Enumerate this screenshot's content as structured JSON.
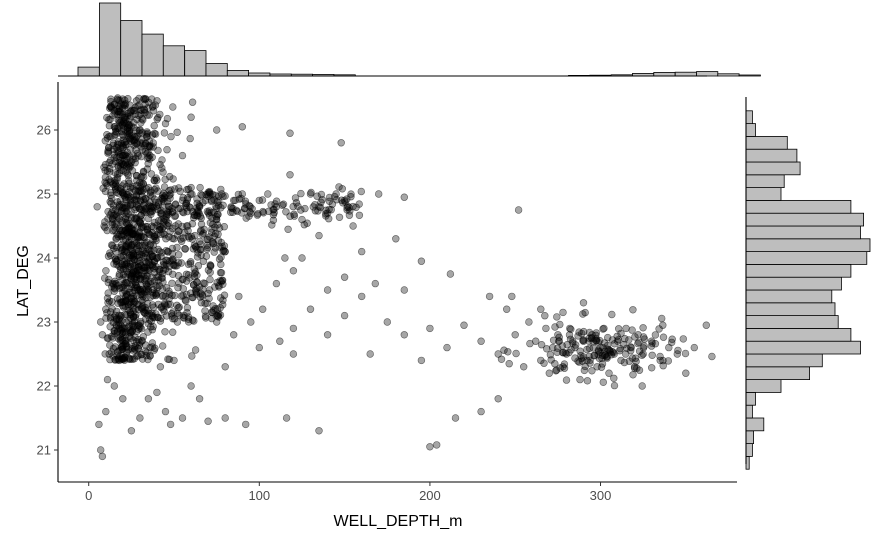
{
  "chart_data": {
    "type": "scatter",
    "title": "",
    "xlabel": "WELL_DEPTH_m",
    "ylabel": "LAT_DEG",
    "xlim": [
      -18,
      380
    ],
    "ylim": [
      20.5,
      26.75
    ],
    "x_ticks": [
      "0",
      "100",
      "200",
      "300"
    ],
    "y_ticks": [
      "21",
      "22",
      "23",
      "24",
      "25",
      "26"
    ],
    "grid": false,
    "legend": "none",
    "point_color": "#000000",
    "point_alpha": 0.35,
    "hist_color": "#bebebe",
    "marginal_x_hist": {
      "bin_width": 12.5,
      "start": -6.25,
      "counts": [
        45,
        368,
        280,
        211,
        152,
        128,
        63,
        28,
        15,
        10,
        9,
        8,
        6,
        0,
        0,
        0,
        0,
        0,
        0,
        0,
        0,
        0,
        0,
        3,
        4,
        6,
        13,
        18,
        19,
        22,
        11,
        5,
        0
      ]
    },
    "marginal_y_hist": {
      "bin_width": 0.2,
      "start": 20.7,
      "counts": [
        5,
        10,
        12,
        28,
        10,
        15,
        55,
        100,
        120,
        180,
        165,
        145,
        140,
        135,
        150,
        165,
        190,
        195,
        180,
        185,
        165,
        55,
        60,
        85,
        80,
        65,
        15,
        10
      ]
    },
    "series": [
      {
        "points": [
          [
            8,
            22.8
          ],
          [
            10,
            23.2
          ],
          [
            12,
            22.5
          ],
          [
            14,
            23.6
          ],
          [
            16,
            24.1
          ],
          [
            18,
            24.8
          ],
          [
            20,
            25.6
          ],
          [
            12,
            25.9
          ],
          [
            15,
            26.3
          ],
          [
            22,
            26.1
          ],
          [
            25,
            25.5
          ],
          [
            28,
            24.9
          ],
          [
            30,
            24.4
          ],
          [
            26,
            23.8
          ],
          [
            24,
            23.3
          ],
          [
            20,
            22.9
          ],
          [
            18,
            22.4
          ],
          [
            11,
            22.1
          ],
          [
            9,
            24.5
          ],
          [
            13,
            25.2
          ],
          [
            17,
            26.5
          ],
          [
            19,
            23.1
          ],
          [
            21,
            23.9
          ],
          [
            23,
            24.6
          ],
          [
            27,
            25.8
          ],
          [
            29,
            23.5
          ],
          [
            31,
            22.7
          ],
          [
            33,
            24.2
          ],
          [
            35,
            25.1
          ],
          [
            37,
            23.7
          ],
          [
            40,
            24.0
          ],
          [
            42,
            24.7
          ],
          [
            45,
            23.4
          ],
          [
            48,
            25.0
          ],
          [
            50,
            24.3
          ],
          [
            52,
            23.0
          ],
          [
            55,
            24.9
          ],
          [
            58,
            24.5
          ],
          [
            60,
            25.1
          ],
          [
            62,
            24.2
          ],
          [
            65,
            24.8
          ],
          [
            68,
            23.6
          ],
          [
            70,
            25.0
          ],
          [
            72,
            24.4
          ],
          [
            75,
            24.6
          ],
          [
            78,
            25.0
          ],
          [
            80,
            24.1
          ],
          [
            85,
            24.9
          ],
          [
            90,
            25.0
          ],
          [
            95,
            24.7
          ],
          [
            100,
            24.9
          ],
          [
            105,
            25.0
          ],
          [
            110,
            24.8
          ],
          [
            115,
            24.0
          ],
          [
            118,
            25.3
          ],
          [
            120,
            23.8
          ],
          [
            125,
            24.6
          ],
          [
            130,
            25.0
          ],
          [
            135,
            24.8
          ],
          [
            140,
            24.7
          ],
          [
            145,
            25.0
          ],
          [
            150,
            24.9
          ],
          [
            155,
            24.5
          ],
          [
            160,
            24.1
          ],
          [
            170,
            25.0
          ],
          [
            180,
            24.3
          ],
          [
            75,
            26.0
          ],
          [
            90,
            26.05
          ],
          [
            118,
            25.95
          ],
          [
            148,
            25.8
          ],
          [
            55,
            25.6
          ],
          [
            60,
            26.2
          ],
          [
            45,
            26.1
          ],
          [
            38,
            26.3
          ],
          [
            5,
            24.8
          ],
          [
            7,
            23.0
          ],
          [
            7,
            21.0
          ],
          [
            8,
            20.9
          ],
          [
            6,
            21.4
          ],
          [
            10,
            21.6
          ],
          [
            15,
            22.0
          ],
          [
            20,
            21.8
          ],
          [
            25,
            21.3
          ],
          [
            30,
            21.5
          ],
          [
            35,
            21.8
          ],
          [
            40,
            21.9
          ],
          [
            45,
            21.6
          ],
          [
            48,
            21.4
          ],
          [
            55,
            21.5
          ],
          [
            65,
            21.8
          ],
          [
            70,
            21.45
          ],
          [
            80,
            21.5
          ],
          [
            92,
            21.4
          ],
          [
            116,
            21.5
          ],
          [
            135,
            21.3
          ],
          [
            200,
            21.05
          ],
          [
            204,
            21.08
          ],
          [
            215,
            21.5
          ],
          [
            230,
            21.6
          ],
          [
            240,
            21.8
          ],
          [
            60,
            22.0
          ],
          [
            80,
            22.3
          ],
          [
            100,
            22.6
          ],
          [
            120,
            22.9
          ],
          [
            130,
            23.2
          ],
          [
            140,
            22.8
          ],
          [
            150,
            23.1
          ],
          [
            165,
            22.5
          ],
          [
            175,
            23.0
          ],
          [
            185,
            22.8
          ],
          [
            195,
            22.4
          ],
          [
            200,
            22.9
          ],
          [
            210,
            22.6
          ],
          [
            220,
            22.95
          ],
          [
            230,
            22.7
          ],
          [
            235,
            23.4
          ],
          [
            240,
            22.5
          ],
          [
            245,
            23.2
          ],
          [
            250,
            22.8
          ],
          [
            255,
            22.3
          ],
          [
            258,
            23.0
          ],
          [
            262,
            22.7
          ],
          [
            265,
            22.4
          ],
          [
            268,
            22.9
          ],
          [
            270,
            22.2
          ],
          [
            272,
            22.6
          ],
          [
            275,
            22.8
          ],
          [
            278,
            22.3
          ],
          [
            280,
            22.5
          ],
          [
            282,
            22.9
          ],
          [
            285,
            22.6
          ],
          [
            288,
            22.1
          ],
          [
            290,
            22.7
          ],
          [
            292,
            22.4
          ],
          [
            295,
            22.8
          ],
          [
            298,
            22.3
          ],
          [
            300,
            22.6
          ],
          [
            302,
            22.9
          ],
          [
            305,
            22.2
          ],
          [
            308,
            22.5
          ],
          [
            310,
            22.7
          ],
          [
            312,
            22.4
          ],
          [
            315,
            22.9
          ],
          [
            318,
            22.6
          ],
          [
            320,
            22.3
          ],
          [
            322,
            22.8
          ],
          [
            325,
            22.5
          ],
          [
            330,
            22.7
          ],
          [
            335,
            22.4
          ],
          [
            340,
            22.6
          ],
          [
            345,
            22.5
          ],
          [
            350,
            22.2
          ],
          [
            355,
            22.6
          ],
          [
            362,
            22.95
          ],
          [
            290,
            23.3
          ],
          [
            278,
            23.15
          ],
          [
            265,
            23.2
          ],
          [
            248,
            23.4
          ],
          [
            252,
            24.75
          ],
          [
            185,
            24.95
          ],
          [
            212,
            23.75
          ],
          [
            195,
            23.95
          ],
          [
            185,
            23.5
          ],
          [
            168,
            23.6
          ],
          [
            160,
            23.4
          ],
          [
            150,
            23.7
          ],
          [
            140,
            23.5
          ],
          [
            135,
            24.35
          ],
          [
            125,
            24.0
          ],
          [
            110,
            23.6
          ],
          [
            88,
            23.4
          ],
          [
            95,
            23.0
          ],
          [
            102,
            23.2
          ],
          [
            112,
            22.7
          ],
          [
            120,
            22.5
          ],
          [
            85,
            22.8
          ],
          [
            75,
            23.0
          ],
          [
            50,
            22.4
          ],
          [
            42,
            22.3
          ],
          [
            36,
            22.6
          ]
        ]
      }
    ]
  }
}
